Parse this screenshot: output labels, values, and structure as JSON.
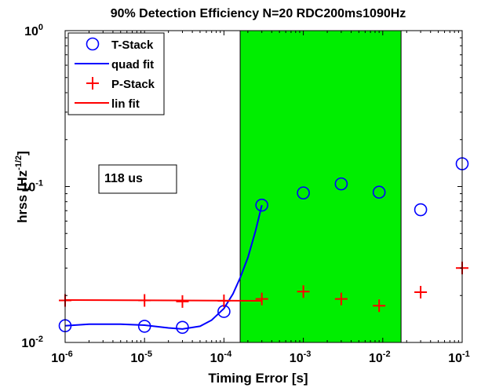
{
  "chart_data": {
    "type": "scatter",
    "title": "90% Detection Efficiency N=20 RDC200ms1090Hz",
    "xlabel": "Timing Error [s]",
    "ylabel_main": "hrss [Hz",
    "ylabel_exp": "-1/2",
    "ylabel_end": "]",
    "x_scale": "log",
    "y_scale": "log",
    "xlim": [
      1e-06,
      0.1
    ],
    "ylim": [
      0.01,
      1
    ],
    "x_ticks": [
      {
        "value": 1e-06,
        "base": "10",
        "exp": "-6"
      },
      {
        "value": 1e-05,
        "base": "10",
        "exp": "-5"
      },
      {
        "value": 0.0001,
        "base": "10",
        "exp": "-4"
      },
      {
        "value": 0.001,
        "base": "10",
        "exp": "-3"
      },
      {
        "value": 0.01,
        "base": "10",
        "exp": "-2"
      },
      {
        "value": 0.1,
        "base": "10",
        "exp": "-1"
      }
    ],
    "y_ticks": [
      {
        "value": 0.01,
        "base": "10",
        "exp": "-2"
      },
      {
        "value": 0.1,
        "base": "10",
        "exp": "-1"
      },
      {
        "value": 1,
        "base": "10",
        "exp": "0"
      }
    ],
    "grid": false,
    "legend_position": "top-left",
    "shaded_region": {
      "x_start": 0.00016,
      "x_end": 0.017,
      "color": "#00ee00"
    },
    "annotation": "118 us",
    "series": [
      {
        "name": "T-Stack",
        "marker": "circle",
        "color": "#0000ff",
        "x": [
          1e-06,
          1e-05,
          3e-05,
          0.0001,
          0.0003,
          0.001,
          0.003,
          0.009,
          0.03,
          0.1
        ],
        "y": [
          0.0128,
          0.0127,
          0.0125,
          0.0158,
          0.076,
          0.091,
          0.104,
          0.092,
          0.071,
          0.14
        ]
      },
      {
        "name": "quad fit",
        "line": true,
        "color": "#0000ff",
        "x": [
          1e-06,
          2e-06,
          5e-06,
          1e-05,
          2e-05,
          3e-05,
          5e-05,
          7e-05,
          0.0001,
          0.00013,
          0.00016,
          0.0002,
          0.00025,
          0.0003
        ],
        "y": [
          0.0128,
          0.0131,
          0.0131,
          0.0129,
          0.0124,
          0.0122,
          0.0127,
          0.0139,
          0.0165,
          0.0205,
          0.026,
          0.035,
          0.052,
          0.076
        ]
      },
      {
        "name": "P-Stack",
        "marker": "plus",
        "color": "#ff0000",
        "x": [
          1e-06,
          1e-05,
          3e-05,
          0.0001,
          0.0003,
          0.001,
          0.003,
          0.009,
          0.03,
          0.1
        ],
        "y": [
          0.0186,
          0.0186,
          0.0183,
          0.0185,
          0.019,
          0.0212,
          0.019,
          0.0172,
          0.021,
          0.03
        ]
      },
      {
        "name": "lin fit",
        "line": true,
        "color": "#ff0000",
        "x": [
          1e-06,
          0.0003
        ],
        "y": [
          0.0187,
          0.0185
        ]
      }
    ]
  }
}
